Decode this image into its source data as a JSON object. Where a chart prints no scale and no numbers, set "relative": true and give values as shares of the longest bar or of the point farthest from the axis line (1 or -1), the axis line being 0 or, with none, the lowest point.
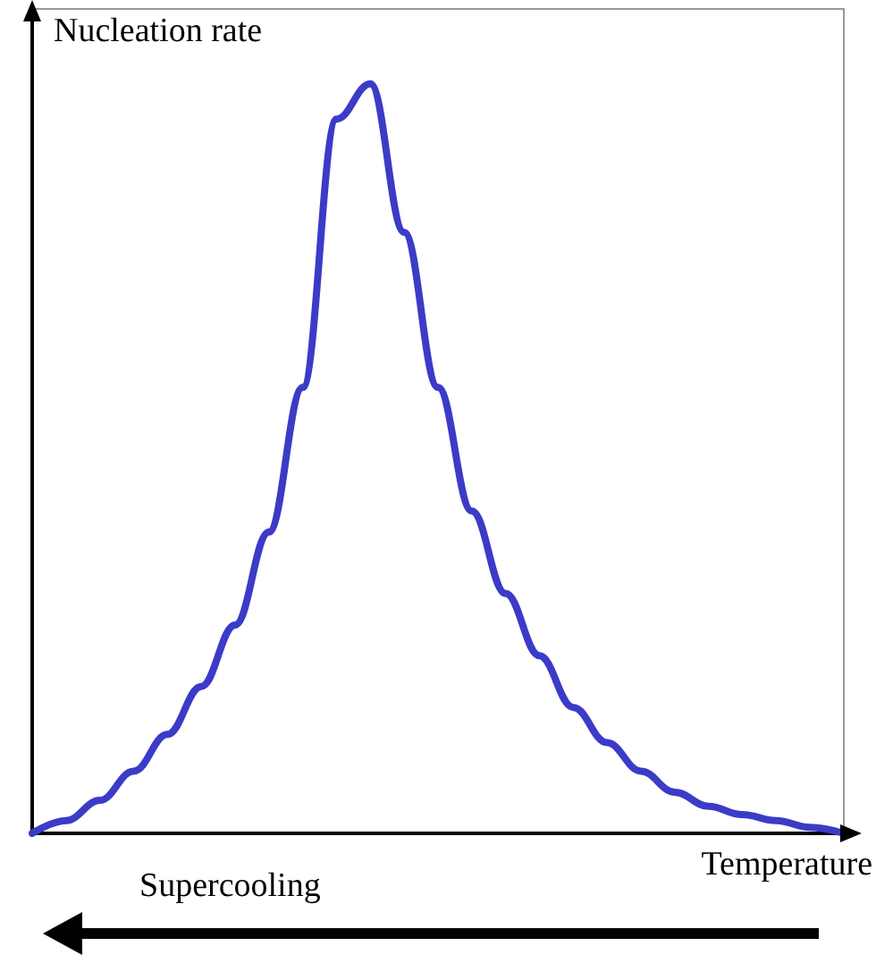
{
  "chart_data": {
    "type": "line",
    "xlabel": "Temperature",
    "ylabel": "Nucleation rate",
    "annotations": [
      "Supercooling"
    ],
    "relative": true,
    "grid": false,
    "marker": "none",
    "line_style": "solid",
    "categories": [
      null,
      null,
      null,
      null,
      null,
      null,
      null,
      null,
      null,
      null,
      null,
      null,
      null,
      null,
      null,
      null,
      null,
      null,
      null,
      null,
      null,
      null,
      null,
      null,
      null
    ],
    "series": [
      {
        "color": "#3b3bc8",
        "values": [
          0,
          0.017,
          0.044,
          0.083,
          0.132,
          0.196,
          0.278,
          0.402,
          0.595,
          0.953,
          1,
          0.802,
          0.595,
          0.43,
          0.32,
          0.237,
          0.168,
          0.121,
          0.083,
          0.055,
          0.036,
          0.025,
          0.017,
          0.008,
          0
        ]
      }
    ]
  }
}
